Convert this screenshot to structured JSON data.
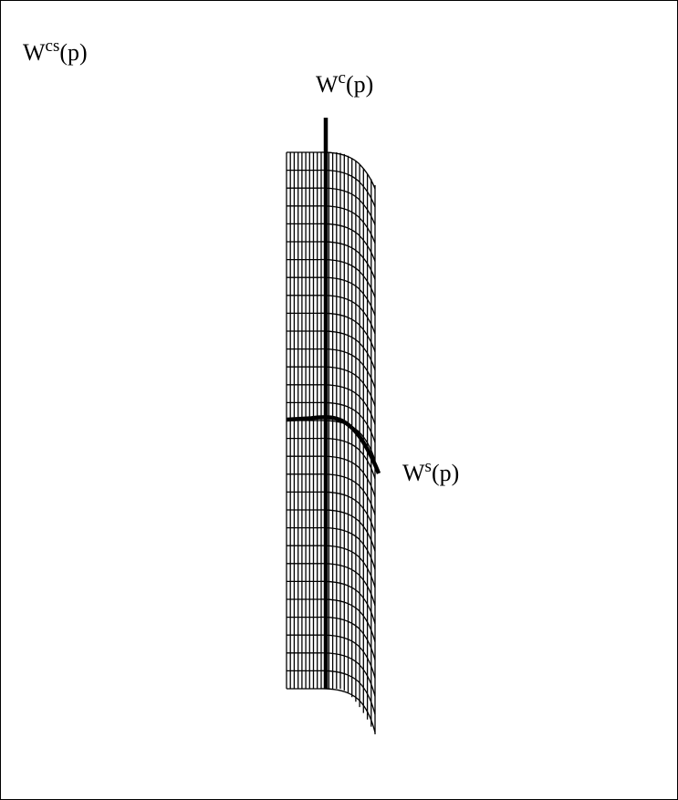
{
  "labels": {
    "center_stable_manifold": {
      "base": "W",
      "sup": "cs",
      "tail": "(p)"
    },
    "center_manifold": {
      "base": "W",
      "sup": "c",
      "tail": "(p)"
    },
    "stable_manifold": {
      "base": "W",
      "sup": "s",
      "tail": "(p)"
    }
  },
  "colors": {
    "ink": "#000000",
    "background": "#ffffff"
  }
}
